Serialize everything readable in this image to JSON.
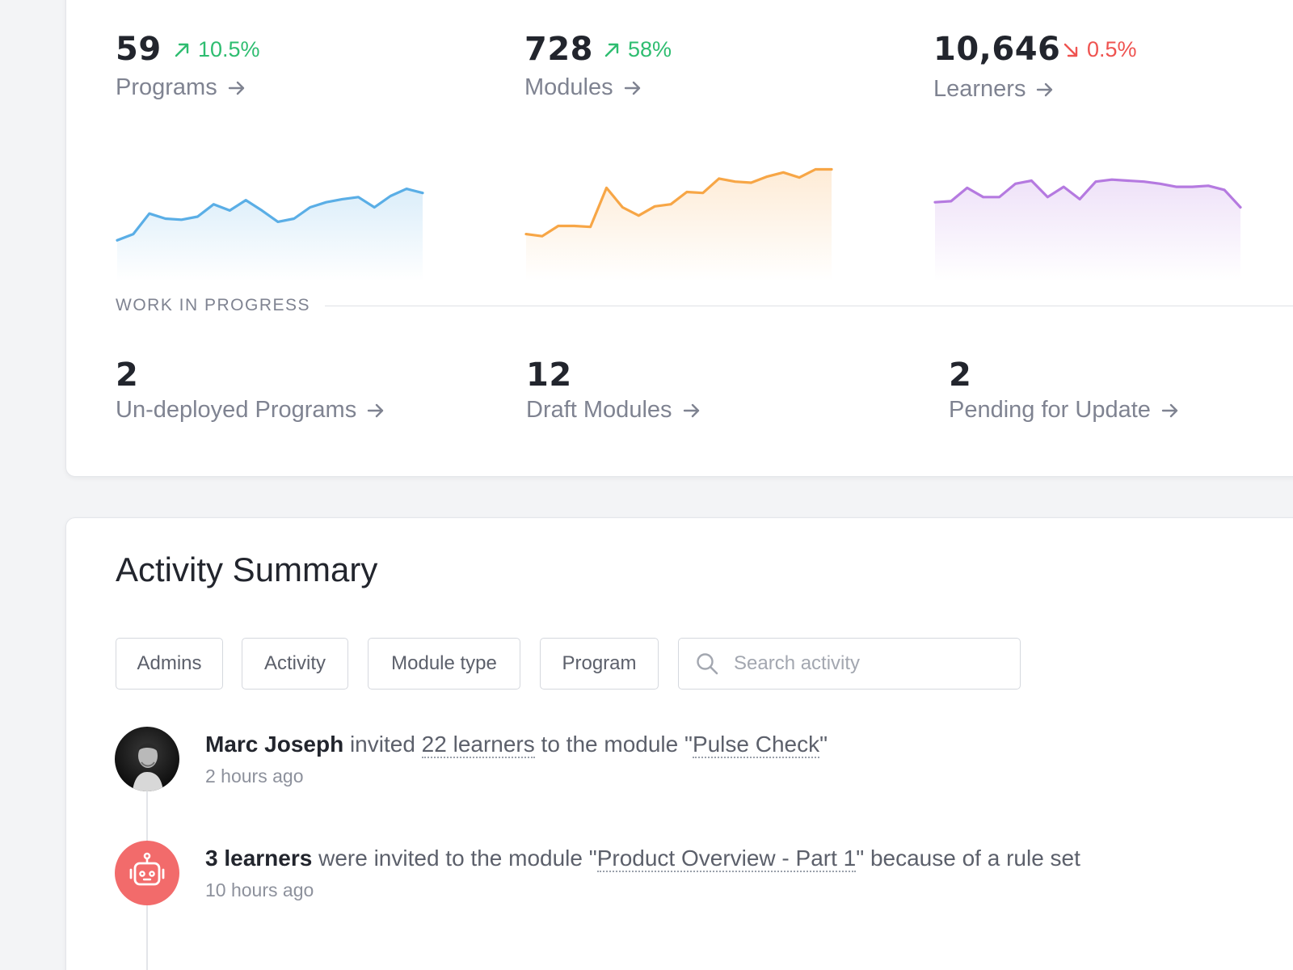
{
  "colors": {
    "up": "#2ebd70",
    "down": "#ef5350",
    "blue": "#5aaee6",
    "orange": "#f7a646",
    "purple": "#b57ae0",
    "robot": "#f26b6b"
  },
  "stats": [
    {
      "value": "59",
      "delta": "10.5%",
      "direction": "up",
      "label": "Programs",
      "sparkline": [
        32,
        38,
        58,
        53,
        52,
        55,
        67,
        61,
        71,
        61,
        50,
        53,
        64,
        69,
        72,
        74,
        64,
        75,
        82,
        78
      ]
    },
    {
      "value": "728",
      "delta": "58%",
      "direction": "up",
      "label": "Modules",
      "sparkline": [
        38,
        36,
        46,
        46,
        45,
        83,
        64,
        56,
        65,
        67,
        79,
        78,
        92,
        89,
        88,
        94,
        98,
        93,
        101,
        101
      ]
    },
    {
      "value": "10,646",
      "delta": "0.5%",
      "direction": "down",
      "label": "Learners",
      "sparkline": [
        69,
        70,
        83,
        74,
        74,
        87,
        90,
        74,
        84,
        72,
        89,
        91,
        90,
        89,
        87,
        84,
        84,
        85,
        81,
        64
      ]
    }
  ],
  "wip": {
    "title": "WORK IN PROGRESS",
    "items": [
      {
        "value": "2",
        "label": "Un-deployed Programs"
      },
      {
        "value": "12",
        "label": "Draft Modules"
      },
      {
        "value": "2",
        "label": "Pending for Update"
      }
    ]
  },
  "activity": {
    "title": "Activity Summary",
    "filters": [
      "Admins",
      "Activity",
      "Module type",
      "Program"
    ],
    "search_placeholder": "Search activity",
    "items": [
      {
        "actor": "Marc Joseph",
        "t1": " invited ",
        "link1": "22 learners",
        "t2": " to the module \"",
        "link2": "Pulse Check",
        "t3": "\"",
        "time": "2 hours ago",
        "avatar": "person-photo"
      },
      {
        "actor": "3 learners",
        "t1": " were invited to the module \"",
        "link1": "Product Overview - Part 1",
        "t2": "\" because of a rule set",
        "time": "10 hours ago",
        "avatar": "robot-icon"
      }
    ]
  }
}
